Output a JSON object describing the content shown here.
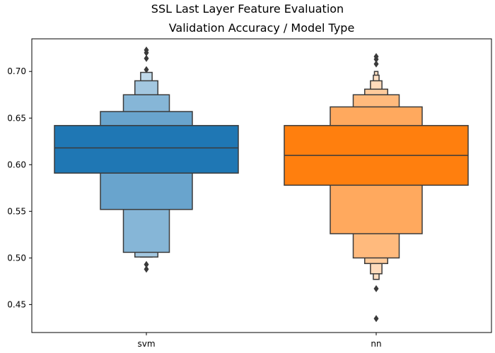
{
  "chart_data": {
    "type": "boxenplot",
    "title": "SSL Last Layer Feature Evaluation",
    "subtitle": "Validation Accuracy / Model Type",
    "xlabel": "",
    "ylabel": "",
    "ylim": [
      0.42,
      0.735
    ],
    "yticks": [
      "0.45",
      "0.50",
      "0.55",
      "0.60",
      "0.65",
      "0.70"
    ],
    "yticks_values": [
      0.45,
      0.5,
      0.55,
      0.6,
      0.65,
      0.7
    ],
    "categories": [
      "svm",
      "nn"
    ],
    "grid": false,
    "series": [
      {
        "category": "svm",
        "color": "#1f77b4",
        "median": 0.618,
        "boxes": [
          {
            "low": 0.591,
            "high": 0.642
          },
          {
            "low": 0.552,
            "high": 0.657
          },
          {
            "low": 0.506,
            "high": 0.675
          },
          {
            "low": 0.501,
            "high": 0.69
          },
          {
            "low": 0.501,
            "high": 0.699
          }
        ],
        "outliers": [
          0.723,
          0.72,
          0.714,
          0.702,
          0.493,
          0.488
        ]
      },
      {
        "category": "nn",
        "color": "#ff7f0e",
        "median": 0.61,
        "boxes": [
          {
            "low": 0.578,
            "high": 0.642
          },
          {
            "low": 0.526,
            "high": 0.662
          },
          {
            "low": 0.5,
            "high": 0.675
          },
          {
            "low": 0.494,
            "high": 0.681
          },
          {
            "low": 0.483,
            "high": 0.69
          },
          {
            "low": 0.477,
            "high": 0.696
          },
          {
            "low": 0.477,
            "high": 0.7
          }
        ],
        "outliers": [
          0.716,
          0.713,
          0.708,
          0.467,
          0.435
        ]
      }
    ]
  }
}
